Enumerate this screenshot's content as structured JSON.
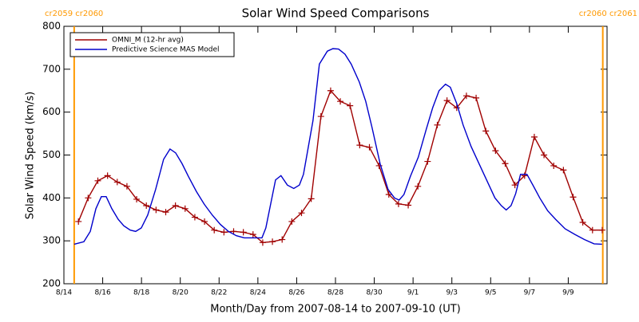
{
  "chart_data": {
    "type": "line",
    "title": "Solar Wind Speed Comparisons",
    "xlabel": "Month/Day from 2007-08-14 to 2007-09-10 (UT)",
    "ylabel": "Solar Wind Speed (km/s)",
    "xlim": [
      0,
      28
    ],
    "xticks": [
      {
        "value": 0,
        "label": "8/14"
      },
      {
        "value": 2,
        "label": "8/16"
      },
      {
        "value": 4,
        "label": "8/18"
      },
      {
        "value": 6,
        "label": "8/20"
      },
      {
        "value": 8,
        "label": "8/22"
      },
      {
        "value": 10,
        "label": "8/24"
      },
      {
        "value": 12,
        "label": "8/26"
      },
      {
        "value": 14,
        "label": "8/28"
      },
      {
        "value": 16,
        "label": "8/30"
      },
      {
        "value": 18,
        "label": "9/1"
      },
      {
        "value": 20,
        "label": "9/3"
      },
      {
        "value": 22,
        "label": "9/5"
      },
      {
        "value": 24,
        "label": "9/7"
      },
      {
        "value": 26,
        "label": "9/9"
      }
    ],
    "ylim": [
      200,
      800
    ],
    "yticks": [
      200,
      300,
      400,
      500,
      600,
      700,
      800
    ],
    "legend": "upper-left",
    "markers": [
      {
        "x": 0.53,
        "label": "cr2059 cr2060",
        "color": "#ff9900"
      },
      {
        "x": 27.78,
        "label": "cr2060 cr2061",
        "color": "#ff9900"
      }
    ],
    "series": [
      {
        "name": "OMNI_M (12-hr avg)",
        "color": "#a00000",
        "marker": "plus",
        "x": [
          0.75,
          1.25,
          1.75,
          2.25,
          2.75,
          3.25,
          3.75,
          4.25,
          4.75,
          5.25,
          5.75,
          6.25,
          6.75,
          7.25,
          7.75,
          8.25,
          8.75,
          9.25,
          9.75,
          10.25,
          10.75,
          11.25,
          11.75,
          12.25,
          12.75,
          13.25,
          13.75,
          14.25,
          14.75,
          15.25,
          15.75,
          16.25,
          16.75,
          17.25,
          17.75,
          18.25,
          18.75,
          19.25,
          19.75,
          20.25,
          20.75,
          21.25,
          21.75,
          22.25,
          22.75,
          23.25,
          23.75,
          24.25,
          24.75,
          25.25,
          25.75,
          26.25,
          26.75,
          27.25,
          27.75
        ],
        "values": [
          345,
          400,
          440,
          452,
          437,
          427,
          397,
          382,
          372,
          367,
          382,
          375,
          355,
          345,
          325,
          320,
          322,
          320,
          315,
          296,
          298,
          303,
          345,
          365,
          398,
          590,
          650,
          625,
          615,
          523,
          518,
          475,
          408,
          386,
          383,
          427,
          485,
          570,
          627,
          610,
          638,
          633,
          556,
          510,
          480,
          430,
          452,
          542,
          500,
          475,
          465,
          402,
          343,
          325,
          325
        ]
      },
      {
        "name": "Predictive Science MAS Model",
        "color": "#0000cc",
        "x": [
          0.53,
          1.03,
          1.36,
          1.65,
          1.93,
          2.18,
          2.47,
          2.8,
          3.09,
          3.42,
          3.7,
          3.99,
          4.32,
          4.73,
          5.14,
          5.47,
          5.76,
          6.09,
          6.42,
          6.83,
          7.24,
          7.65,
          8.07,
          8.48,
          8.89,
          9.3,
          9.79,
          10.21,
          10.41,
          10.91,
          11.19,
          11.52,
          11.85,
          12.14,
          12.35,
          12.84,
          13.17,
          13.58,
          13.87,
          14.16,
          14.49,
          14.81,
          15.23,
          15.56,
          15.88,
          16.3,
          16.71,
          17.04,
          17.28,
          17.53,
          17.86,
          18.27,
          18.68,
          19.01,
          19.34,
          19.67,
          19.92,
          20.25,
          20.58,
          20.99,
          21.4,
          21.81,
          22.22,
          22.55,
          22.8,
          23.05,
          23.29,
          23.54,
          23.87,
          24.2,
          24.53,
          24.94,
          25.35,
          25.84,
          26.34,
          26.83,
          27.33,
          27.74
        ],
        "values": [
          292,
          298,
          322,
          375,
          403,
          403,
          375,
          350,
          335,
          325,
          322,
          330,
          360,
          420,
          490,
          514,
          505,
          480,
          450,
          415,
          385,
          360,
          338,
          322,
          312,
          307,
          307,
          307,
          330,
          442,
          452,
          430,
          422,
          430,
          455,
          580,
          712,
          742,
          748,
          747,
          735,
          712,
          670,
          625,
          565,
          480,
          420,
          400,
          395,
          408,
          450,
          495,
          560,
          610,
          650,
          665,
          658,
          620,
          570,
          520,
          480,
          440,
          400,
          382,
          372,
          382,
          410,
          455,
          455,
          428,
          400,
          370,
          350,
          328,
          315,
          303,
          293,
          292
        ]
      }
    ]
  }
}
